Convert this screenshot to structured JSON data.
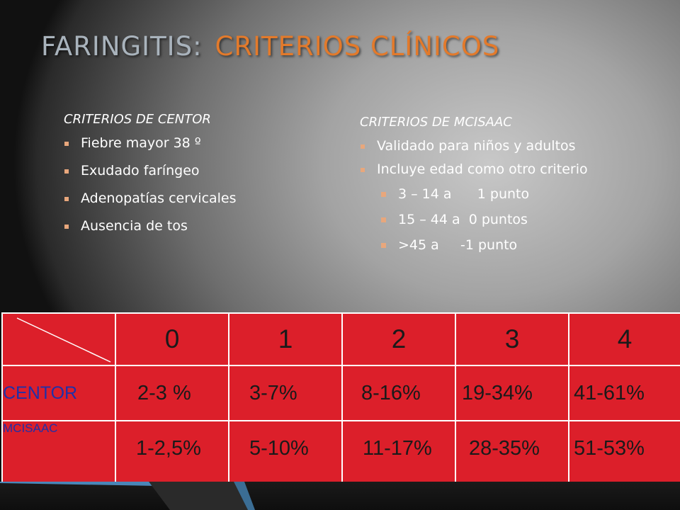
{
  "title": {
    "part1": "FARINGITIS:",
    "part2": "CRITERIOS CLÍNICOS"
  },
  "centor": {
    "heading": "CRITERIOS DE CENTOR",
    "items": [
      "Fiebre mayor 38 º",
      "Exudado faríngeo",
      "Adenopatías cervicales",
      "Ausencia de tos"
    ]
  },
  "mcisaac": {
    "heading": "CRITERIOS DE MCISAAC",
    "items": [
      "Validado para niños y adultos",
      "Incluye  edad como otro criterio"
    ],
    "subitems": [
      "3 – 14 a      1 punto",
      "15 – 44 a  0 puntos",
      ">45 a     -1 punto"
    ]
  },
  "table": {
    "columns": [
      "0",
      "1",
      "2",
      "3",
      "4"
    ],
    "rows": [
      {
        "label": "CENTOR",
        "values": [
          "2-3 %",
          "3-7%",
          "8-16%",
          "19-34%",
          "41-61%"
        ]
      },
      {
        "label": "MCISAAC",
        "values": [
          "1-2,5%",
          "5-10%",
          "11-17%",
          "28-35%",
          "51-53%"
        ]
      }
    ]
  },
  "colors": {
    "table_bg": "#dc1f2a",
    "title_accent": "#e37a2b",
    "bullet": "#e8a77c",
    "row_label": "#2030a8"
  }
}
